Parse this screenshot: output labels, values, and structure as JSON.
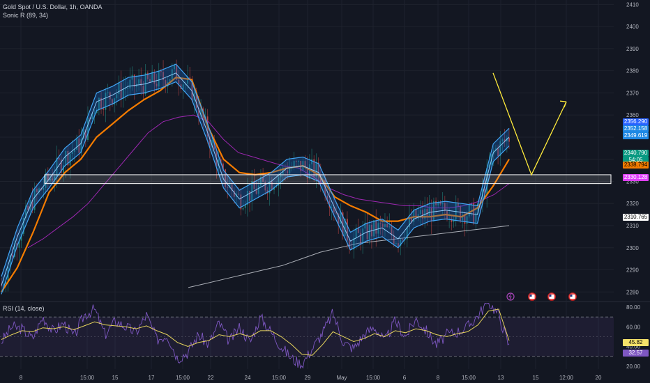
{
  "header": {
    "title": "Gold Spot / U.S. Dollar, 1h, OANDA",
    "indicator": "Sonic R (89, 34)",
    "rsi_title": "RSI (14, close)"
  },
  "colors": {
    "background": "#131722",
    "grid": "#1e222d",
    "band_fill": "#1565c0",
    "band_line": "#42a5f5",
    "ema_orange": "#f57c00",
    "ema_magenta": "#9c27b0",
    "ema_white": "#d1d4dc",
    "candle_up": "#26a69a",
    "candle_down": "#ef5350",
    "zone": "#ffffff",
    "projection": "#ffeb3b",
    "rsi_line": "#7e57c2",
    "rsi_ma": "#e6d45c"
  },
  "price_badges": [
    {
      "value": "2356.290",
      "bg": "#2962ff"
    },
    {
      "value": "2352.158",
      "bg": "#1e88e5"
    },
    {
      "value": "2349.619",
      "bg": "#1e88e5"
    },
    {
      "value": "2340.790",
      "bg": "#089981"
    },
    {
      "value": "54:05",
      "bg": "#089981"
    },
    {
      "value": "2338.794",
      "bg": "#f57c00"
    },
    {
      "value": "2330.128",
      "bg": "#e040fb"
    },
    {
      "value": "2310.765",
      "bg": "#ffffff"
    }
  ],
  "rsi_badges": [
    {
      "value": "45.82",
      "bg": "#f5e26a"
    },
    {
      "value": "32.57",
      "bg": "#7e57c2"
    }
  ],
  "event_icons": [
    "lightning-icon",
    "us-flag-icon",
    "us-flag-icon",
    "us-flag-icon"
  ],
  "chart_data": [
    {
      "type": "line",
      "title": "Gold Spot / U.S. Dollar, 1h, OANDA",
      "y_ticks": [
        2280,
        2290,
        2300,
        2310,
        2320,
        2330,
        2340,
        2350,
        2360,
        2370,
        2380,
        2390,
        2400,
        2410
      ],
      "ylim": [
        2276,
        2412
      ],
      "x_tick_labels": [
        "8",
        "15:00",
        "15",
        "17",
        "15:00",
        "22",
        "24",
        "15:00",
        "29",
        "May",
        "15:00",
        "6",
        "8",
        "15:00",
        "13",
        "15",
        "12:00",
        "20"
      ],
      "series": [
        {
          "name": "Sonic R (89, 34)",
          "values": [
            2283,
            2305,
            2322,
            2331,
            2341,
            2347,
            2366,
            2369,
            2373,
            2374,
            2376,
            2379,
            2371,
            2352,
            2331,
            2322,
            2326,
            2330,
            2336,
            2337,
            2334,
            2318,
            2303,
            2307,
            2309,
            2304,
            2313,
            2316,
            2317,
            2316,
            2315,
            2343,
            2350
          ]
        },
        {
          "values": [
            2280,
            2291,
            2307,
            2325,
            2334,
            2340,
            2350,
            2356,
            2362,
            2367,
            2371,
            2377,
            2376,
            2355,
            2340,
            2334,
            2333,
            2334,
            2336,
            2337,
            2333,
            2323,
            2319,
            2316,
            2312,
            2312,
            2314,
            2314,
            2315,
            2314,
            2318,
            2328,
            2340
          ]
        },
        {
          "values": [
            2300,
            2304,
            2309,
            2314,
            2320,
            2328,
            2336,
            2344,
            2352,
            2357,
            2359,
            2360,
            2357,
            2349,
            2343,
            2341,
            2339,
            2337,
            2336,
            2332,
            2327,
            2324,
            2322,
            2321,
            2320,
            2319,
            2319,
            2318,
            2318,
            2319,
            2321,
            2324,
            2329
          ]
        },
        {
          "values": [
            2282,
            2284,
            2286,
            2288,
            2290,
            2292,
            2295,
            2298,
            2300,
            2302,
            2303,
            2304,
            2305,
            2306,
            2307,
            2308,
            2309,
            2310
          ]
        }
      ],
      "zone": {
        "from": 2329,
        "to": 2333
      },
      "projection": [
        2379,
        2333,
        2366
      ]
    },
    {
      "type": "line",
      "title": "RSI (14, close)",
      "y_ticks": [
        20,
        40,
        60,
        80
      ],
      "ylim": [
        17,
        85
      ],
      "levels": [
        30,
        70
      ],
      "series": [
        {
          "name": "RSI (14, close)",
          "values": [
            45,
            60,
            58,
            48,
            70,
            55,
            64,
            50,
            72,
            78,
            52,
            66,
            60,
            54,
            72,
            47,
            52,
            28,
            34,
            52,
            42,
            64,
            45,
            60,
            44,
            70,
            55,
            40,
            28,
            22,
            38,
            54,
            74,
            44,
            38,
            52,
            60,
            45,
            66,
            50,
            68,
            56,
            42,
            52,
            55,
            60,
            72,
            86,
            72,
            40
          ]
        },
        {
          "values": [
            47,
            52,
            56,
            55,
            59,
            58,
            60,
            57,
            61,
            65,
            62,
            61,
            60,
            58,
            61,
            56,
            52,
            44,
            40,
            44,
            46,
            52,
            50,
            53,
            50,
            56,
            56,
            50,
            42,
            32,
            31,
            42,
            55,
            50,
            45,
            48,
            53,
            50,
            56,
            54,
            58,
            56,
            52,
            50,
            53,
            55,
            62,
            76,
            78,
            46
          ]
        }
      ]
    }
  ]
}
